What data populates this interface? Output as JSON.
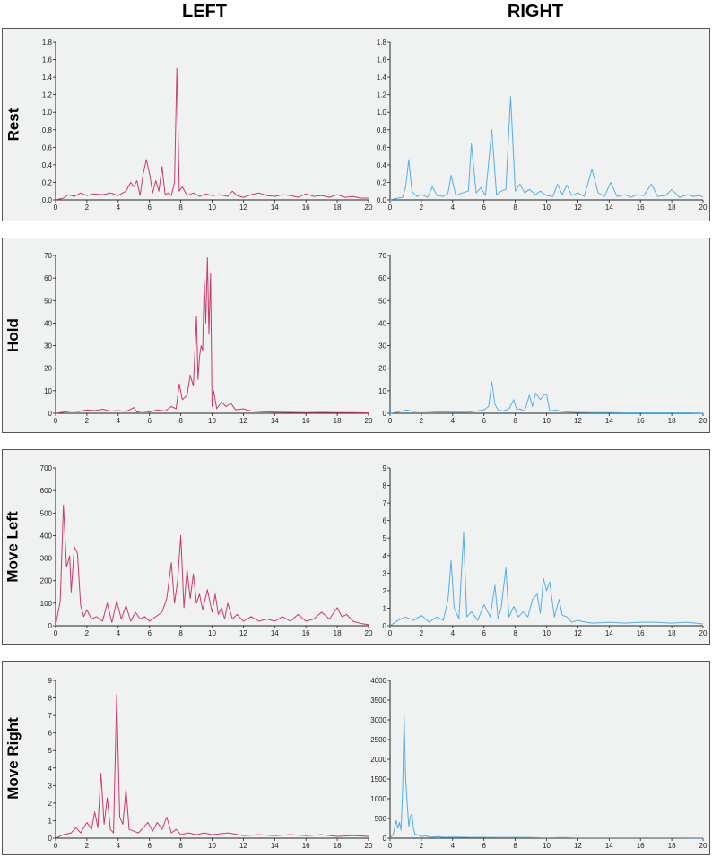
{
  "headers": {
    "left": "LEFT",
    "right": "RIGHT"
  },
  "colors": {
    "left": "#c73c6b",
    "right": "#55aee6",
    "panel_bg": "#f0f1f1",
    "axis": "#222222"
  },
  "rows": [
    {
      "label": "Rest"
    },
    {
      "label": "Hold"
    },
    {
      "label": "Move Left"
    },
    {
      "label": "Move Right"
    }
  ],
  "chart_data": [
    {
      "type": "line",
      "row": "Rest",
      "column": "LEFT",
      "xlim": [
        0,
        20
      ],
      "ylim": [
        0,
        1.8
      ],
      "xticks": [
        0,
        2,
        4,
        6,
        8,
        10,
        12,
        14,
        16,
        18,
        20
      ],
      "yticks": [
        0,
        0.2,
        0.4,
        0.6,
        0.8,
        1.0,
        1.2,
        1.4,
        1.6,
        1.8
      ],
      "yticklabels": [
        "0.0",
        "0.2",
        "0.4",
        "0.6",
        "0.8",
        "1.0",
        "1.2",
        "1.4",
        "1.6",
        "1.8"
      ],
      "series": [
        {
          "color": "#c73c6b",
          "x": [
            0,
            0.5,
            0.8,
            1.2,
            1.6,
            2,
            2.4,
            3,
            3.5,
            4,
            4.5,
            4.8,
            5,
            5.2,
            5.4,
            5.6,
            5.8,
            6,
            6.2,
            6.4,
            6.6,
            6.8,
            7,
            7.2,
            7.4,
            7.6,
            7.75,
            7.9,
            8.1,
            8.4,
            8.8,
            9.2,
            9.6,
            10,
            10.5,
            11,
            11.3,
            11.6,
            12,
            12.5,
            13,
            13.5,
            14,
            14.5,
            15,
            15.5,
            16,
            16.5,
            17,
            17.5,
            18,
            18.5,
            19,
            19.5,
            20
          ],
          "y": [
            0,
            0.02,
            0.06,
            0.04,
            0.08,
            0.05,
            0.07,
            0.06,
            0.08,
            0.05,
            0.1,
            0.2,
            0.15,
            0.22,
            0.05,
            0.3,
            0.46,
            0.3,
            0.08,
            0.22,
            0.1,
            0.38,
            0.06,
            0.08,
            0.05,
            0.2,
            1.5,
            0.1,
            0.15,
            0.05,
            0.08,
            0.04,
            0.07,
            0.05,
            0.06,
            0.04,
            0.1,
            0.05,
            0.03,
            0.06,
            0.08,
            0.05,
            0.04,
            0.06,
            0.05,
            0.03,
            0.07,
            0.04,
            0.05,
            0.03,
            0.06,
            0.03,
            0.04,
            0.02,
            0.02
          ]
        }
      ]
    },
    {
      "type": "line",
      "row": "Rest",
      "column": "RIGHT",
      "xlim": [
        0,
        20
      ],
      "ylim": [
        0,
        1.8
      ],
      "xticks": [
        0,
        2,
        4,
        6,
        8,
        10,
        12,
        14,
        16,
        18,
        20
      ],
      "yticks": [
        0,
        0.2,
        0.4,
        0.6,
        0.8,
        1.0,
        1.2,
        1.4,
        1.6,
        1.8
      ],
      "yticklabels": [
        "0.0",
        "0.2",
        "0.4",
        "0.6",
        "0.8",
        "1.0",
        "1.2",
        "1.4",
        "1.6",
        "1.8"
      ],
      "series": [
        {
          "color": "#55aee6",
          "x": [
            0,
            0.5,
            0.8,
            1.0,
            1.2,
            1.4,
            1.7,
            2,
            2.4,
            2.7,
            3,
            3.4,
            3.7,
            3.9,
            4.2,
            4.6,
            5,
            5.2,
            5.5,
            5.8,
            6.1,
            6.5,
            6.8,
            7.1,
            7.4,
            7.7,
            8,
            8.3,
            8.6,
            8.9,
            9.3,
            9.6,
            10,
            10.4,
            10.7,
            11,
            11.3,
            11.6,
            12,
            12.4,
            12.9,
            13.3,
            13.7,
            14.1,
            14.5,
            15,
            15.4,
            15.8,
            16.2,
            16.7,
            17.1,
            17.6,
            18,
            18.5,
            19,
            19.4,
            19.8,
            20
          ],
          "y": [
            0,
            0.02,
            0.03,
            0.15,
            0.46,
            0.1,
            0.04,
            0.06,
            0.03,
            0.15,
            0.05,
            0.04,
            0.08,
            0.28,
            0.05,
            0.08,
            0.1,
            0.64,
            0.08,
            0.14,
            0.05,
            0.8,
            0.06,
            0.1,
            0.12,
            1.18,
            0.1,
            0.18,
            0.08,
            0.12,
            0.06,
            0.1,
            0.05,
            0.04,
            0.18,
            0.06,
            0.17,
            0.05,
            0.08,
            0.04,
            0.35,
            0.08,
            0.04,
            0.2,
            0.04,
            0.06,
            0.03,
            0.06,
            0.05,
            0.18,
            0.04,
            0.05,
            0.12,
            0.03,
            0.06,
            0.04,
            0.05,
            0.03
          ]
        }
      ]
    },
    {
      "type": "line",
      "row": "Hold",
      "column": "LEFT",
      "xlim": [
        0,
        20
      ],
      "ylim": [
        0,
        70
      ],
      "xticks": [
        0,
        2,
        4,
        6,
        8,
        10,
        12,
        14,
        16,
        18,
        20
      ],
      "yticks": [
        0,
        10,
        20,
        30,
        40,
        50,
        60,
        70
      ],
      "yticklabels": [
        "0",
        "10",
        "20",
        "30",
        "40",
        "50",
        "60",
        "70"
      ],
      "series": [
        {
          "color": "#c73c6b",
          "x": [
            0,
            0.5,
            1,
            1.5,
            2,
            2.5,
            3,
            3.5,
            4,
            4.5,
            5,
            5.2,
            5.5,
            6,
            6.5,
            7,
            7.4,
            7.7,
            7.9,
            8.1,
            8.4,
            8.6,
            8.8,
            9,
            9.1,
            9.2,
            9.3,
            9.4,
            9.5,
            9.6,
            9.7,
            9.8,
            9.9,
            10,
            10.1,
            10.3,
            10.6,
            10.9,
            11.2,
            11.5,
            12,
            12.5,
            13,
            13.5,
            14,
            15,
            16,
            17,
            18,
            19,
            20
          ],
          "y": [
            0,
            0.5,
            1,
            0.8,
            1.5,
            1.2,
            1.8,
            1,
            1.2,
            0.8,
            2.5,
            0.5,
            1,
            0.6,
            1.5,
            1,
            3,
            2,
            13,
            6,
            8,
            17,
            12,
            43,
            15,
            25,
            30,
            28,
            59,
            40,
            69,
            35,
            62,
            3,
            10,
            2,
            5,
            3,
            4.5,
            1.5,
            2,
            1,
            0.8,
            0.6,
            0.5,
            0.4,
            0.3,
            0.4,
            0.3,
            0.3,
            0.2
          ]
        }
      ]
    },
    {
      "type": "line",
      "row": "Hold",
      "column": "RIGHT",
      "xlim": [
        0,
        20
      ],
      "ylim": [
        0,
        70
      ],
      "xticks": [
        0,
        2,
        4,
        6,
        8,
        10,
        12,
        14,
        16,
        18,
        20
      ],
      "yticks": [
        0,
        10,
        20,
        30,
        40,
        50,
        60,
        70
      ],
      "yticklabels": [
        "0",
        "10",
        "20",
        "30",
        "40",
        "50",
        "60",
        "70"
      ],
      "series": [
        {
          "color": "#55aee6",
          "x": [
            0,
            0.5,
            1,
            1.5,
            2,
            3,
            4,
            5,
            5.5,
            6,
            6.3,
            6.5,
            6.7,
            6.9,
            7.2,
            7.6,
            7.9,
            8.1,
            8.3,
            8.6,
            8.9,
            9.1,
            9.3,
            9.6,
            9.8,
            10,
            10.2,
            10.6,
            11,
            11.5,
            12,
            13,
            14,
            15,
            16,
            17,
            18,
            19,
            20
          ],
          "y": [
            0,
            0.5,
            1.5,
            0.8,
            1,
            0.6,
            0.5,
            0.5,
            1,
            1.5,
            3,
            14,
            4,
            1.5,
            1,
            2,
            6,
            1.5,
            2,
            1,
            8,
            3,
            9,
            6,
            8,
            8.5,
            1,
            1.5,
            0.8,
            0.5,
            0.4,
            0.3,
            0.3,
            0.2,
            0.2,
            0.2,
            0.2,
            0.2,
            0.1
          ]
        }
      ]
    },
    {
      "type": "line",
      "row": "Move Left",
      "column": "LEFT",
      "xlim": [
        0,
        20
      ],
      "ylim": [
        0,
        700
      ],
      "xticks": [
        0,
        2,
        4,
        6,
        8,
        10,
        12,
        14,
        16,
        18,
        20
      ],
      "yticks": [
        0,
        100,
        200,
        300,
        400,
        500,
        600,
        700
      ],
      "yticklabels": [
        "0",
        "100",
        "200",
        "300",
        "400",
        "500",
        "600",
        "700"
      ],
      "series": [
        {
          "color": "#c73c6b",
          "x": [
            0,
            0.3,
            0.5,
            0.7,
            0.9,
            1.0,
            1.2,
            1.4,
            1.6,
            1.8,
            2,
            2.3,
            2.6,
            3,
            3.3,
            3.6,
            3.9,
            4.2,
            4.5,
            4.8,
            5.1,
            5.4,
            5.7,
            6,
            6.4,
            6.8,
            7.1,
            7.4,
            7.6,
            7.8,
            8,
            8.2,
            8.4,
            8.6,
            8.8,
            9,
            9.2,
            9.4,
            9.7,
            10,
            10.2,
            10.4,
            10.6,
            10.8,
            11,
            11.3,
            11.6,
            12,
            12.5,
            13,
            13.5,
            14,
            14.5,
            15,
            15.5,
            16,
            16.5,
            17,
            17.5,
            18,
            18.3,
            18.6,
            19,
            19.5,
            20
          ],
          "y": [
            0,
            110,
            535,
            260,
            310,
            150,
            350,
            320,
            90,
            40,
            70,
            30,
            40,
            20,
            100,
            15,
            110,
            30,
            90,
            20,
            60,
            30,
            40,
            20,
            40,
            60,
            120,
            280,
            100,
            200,
            400,
            80,
            250,
            120,
            230,
            100,
            140,
            70,
            160,
            60,
            140,
            50,
            80,
            30,
            100,
            30,
            50,
            20,
            40,
            20,
            30,
            20,
            40,
            20,
            50,
            20,
            30,
            60,
            30,
            80,
            40,
            50,
            20,
            10,
            5
          ]
        }
      ]
    },
    {
      "type": "line",
      "row": "Move Left",
      "column": "RIGHT",
      "xlim": [
        0,
        20
      ],
      "ylim": [
        0,
        9
      ],
      "xticks": [
        0,
        2,
        4,
        6,
        8,
        10,
        12,
        14,
        16,
        18,
        20
      ],
      "yticks": [
        0,
        1,
        2,
        3,
        4,
        5,
        6,
        7,
        8,
        9
      ],
      "yticklabels": [
        "0",
        "1",
        "2",
        "3",
        "4",
        "5",
        "6",
        "7",
        "8",
        "9"
      ],
      "series": [
        {
          "color": "#55aee6",
          "x": [
            0,
            0.5,
            1,
            1.5,
            2,
            2.5,
            3,
            3.4,
            3.7,
            3.9,
            4.1,
            4.4,
            4.7,
            4.9,
            5.2,
            5.6,
            6,
            6.4,
            6.7,
            6.9,
            7.1,
            7.4,
            7.6,
            7.9,
            8.2,
            8.5,
            8.8,
            9.1,
            9.4,
            9.6,
            9.8,
            10,
            10.2,
            10.5,
            10.8,
            11,
            11.3,
            11.6,
            12,
            12.5,
            13,
            14,
            15,
            16,
            17,
            18,
            19,
            20
          ],
          "y": [
            0,
            0.3,
            0.5,
            0.3,
            0.6,
            0.2,
            0.5,
            0.3,
            1.5,
            3.7,
            1,
            0.4,
            5.3,
            0.5,
            0.8,
            0.3,
            1.2,
            0.5,
            2.3,
            0.4,
            1,
            3.3,
            0.5,
            1.1,
            0.5,
            0.8,
            0.5,
            1.5,
            1.8,
            0.7,
            2.7,
            2,
            2.5,
            0.5,
            1.5,
            0.6,
            0.5,
            0.2,
            0.3,
            0.2,
            0.15,
            0.2,
            0.15,
            0.2,
            0.2,
            0.15,
            0.2,
            0.1
          ]
        }
      ]
    },
    {
      "type": "line",
      "row": "Move Right",
      "column": "LEFT",
      "xlim": [
        0,
        20
      ],
      "ylim": [
        0,
        9
      ],
      "xticks": [
        0,
        2,
        4,
        6,
        8,
        10,
        12,
        14,
        16,
        18,
        20
      ],
      "yticks": [
        0,
        1,
        2,
        3,
        4,
        5,
        6,
        7,
        8,
        9
      ],
      "yticklabels": [
        "0",
        "1",
        "2",
        "3",
        "4",
        "5",
        "6",
        "7",
        "8",
        "9"
      ],
      "series": [
        {
          "color": "#c73c6b",
          "x": [
            0,
            0.5,
            1,
            1.3,
            1.6,
            2,
            2.3,
            2.5,
            2.7,
            2.9,
            3.1,
            3.3,
            3.5,
            3.7,
            3.9,
            4.1,
            4.3,
            4.5,
            4.7,
            5,
            5.3,
            5.6,
            5.9,
            6.2,
            6.5,
            6.8,
            7.1,
            7.4,
            7.7,
            8,
            8.5,
            9,
            9.5,
            10,
            11,
            12,
            13,
            14,
            15,
            16,
            17,
            18,
            19,
            20
          ],
          "y": [
            0,
            0.2,
            0.3,
            0.6,
            0.3,
            0.9,
            0.5,
            1.5,
            0.6,
            3.7,
            0.8,
            2.3,
            0.5,
            0.3,
            8.2,
            1.2,
            0.8,
            2.8,
            0.5,
            0.4,
            0.3,
            0.6,
            0.9,
            0.4,
            0.9,
            0.5,
            1.2,
            0.3,
            0.5,
            0.2,
            0.3,
            0.2,
            0.3,
            0.2,
            0.3,
            0.15,
            0.2,
            0.15,
            0.2,
            0.15,
            0.2,
            0.1,
            0.15,
            0.1
          ]
        }
      ]
    },
    {
      "type": "line",
      "row": "Move Right",
      "column": "RIGHT",
      "xlim": [
        0,
        20
      ],
      "ylim": [
        0,
        4000
      ],
      "xticks": [
        0,
        2,
        4,
        6,
        8,
        10,
        12,
        14,
        16,
        18,
        20
      ],
      "yticks": [
        0,
        500,
        1000,
        1500,
        2000,
        2500,
        3000,
        3500,
        4000
      ],
      "yticklabels": [
        "0",
        "500",
        "1000",
        "1500",
        "2000",
        "2500",
        "3000",
        "3500",
        "4000"
      ],
      "series": [
        {
          "color": "#55aee6",
          "x": [
            0,
            0.2,
            0.4,
            0.5,
            0.6,
            0.7,
            0.8,
            0.9,
            1.0,
            1.1,
            1.2,
            1.3,
            1.4,
            1.5,
            1.6,
            1.8,
            2,
            2.3,
            2.6,
            3,
            3.5,
            4,
            5,
            6,
            7,
            8,
            9,
            10,
            11,
            12,
            14,
            16,
            18,
            20
          ],
          "y": [
            0,
            100,
            450,
            250,
            400,
            200,
            1200,
            3100,
            1500,
            850,
            300,
            550,
            620,
            250,
            100,
            80,
            40,
            60,
            20,
            40,
            20,
            30,
            20,
            20,
            15,
            20,
            15,
            10,
            15,
            10,
            10,
            8,
            8,
            5
          ]
        }
      ]
    }
  ]
}
